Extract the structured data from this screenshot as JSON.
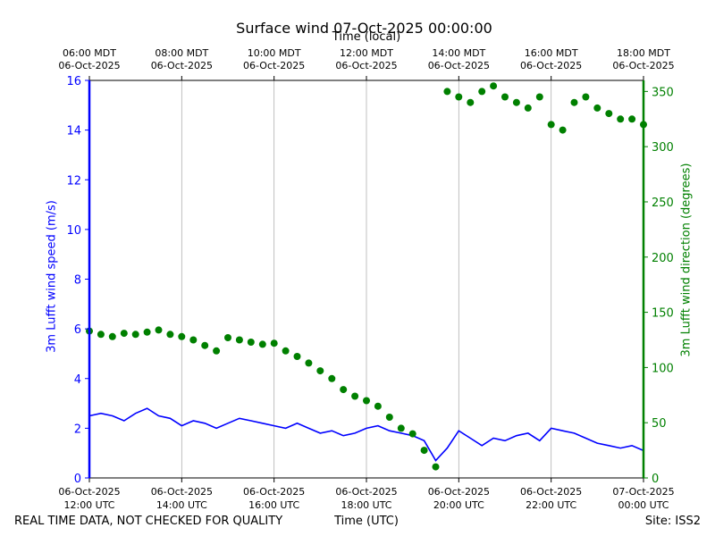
{
  "chart_data": {
    "type": "line+scatter",
    "title": "Surface wind 07-Oct-2025 00:00:00",
    "top_xlabel": "Time (local)",
    "xlabel": "Time (UTC)",
    "ylabel_left": "3m Lufft wind speed (m/s)",
    "ylabel_right": "3m Lufft wind direction (degrees)",
    "disclaimer": "REAL TIME DATA, NOT CHECKED FOR QUALITY",
    "site": "Site: ISS2",
    "xlim_hours": [
      12,
      24
    ],
    "ylim_left": [
      0,
      16
    ],
    "ylim_right": [
      0,
      360
    ],
    "grid": "vertical",
    "bottom_ticks": [
      {
        "hour": 12,
        "line1": "06-Oct-2025",
        "line2": "12:00 UTC"
      },
      {
        "hour": 14,
        "line1": "06-Oct-2025",
        "line2": "14:00 UTC"
      },
      {
        "hour": 16,
        "line1": "06-Oct-2025",
        "line2": "16:00 UTC"
      },
      {
        "hour": 18,
        "line1": "06-Oct-2025",
        "line2": "18:00 UTC"
      },
      {
        "hour": 20,
        "line1": "06-Oct-2025",
        "line2": "20:00 UTC"
      },
      {
        "hour": 22,
        "line1": "06-Oct-2025",
        "line2": "22:00 UTC"
      },
      {
        "hour": 24,
        "line1": "07-Oct-2025",
        "line2": "00:00 UTC"
      }
    ],
    "top_ticks": [
      {
        "hour": 12,
        "line1": "06:00 MDT",
        "line2": "06-Oct-2025"
      },
      {
        "hour": 14,
        "line1": "08:00 MDT",
        "line2": "06-Oct-2025"
      },
      {
        "hour": 16,
        "line1": "10:00 MDT",
        "line2": "06-Oct-2025"
      },
      {
        "hour": 18,
        "line1": "12:00 MDT",
        "line2": "06-Oct-2025"
      },
      {
        "hour": 20,
        "line1": "14:00 MDT",
        "line2": "06-Oct-2025"
      },
      {
        "hour": 22,
        "line1": "16:00 MDT",
        "line2": "06-Oct-2025"
      },
      {
        "hour": 24,
        "line1": "18:00 MDT",
        "line2": "06-Oct-2025"
      }
    ],
    "left_ticks": [
      0,
      2,
      4,
      6,
      8,
      10,
      12,
      14,
      16
    ],
    "right_ticks": [
      0,
      50,
      100,
      150,
      200,
      250,
      300,
      350
    ],
    "colors": {
      "speed": "#0000ff",
      "direction": "#008000",
      "grid": "#b0b0b0",
      "axis": "#000000"
    },
    "series": [
      {
        "name": "3m Lufft wind speed (m/s)",
        "axis": "left",
        "style": "line",
        "x": [
          12.0,
          12.25,
          12.5,
          12.75,
          13.0,
          13.25,
          13.5,
          13.75,
          14.0,
          14.25,
          14.5,
          14.75,
          15.0,
          15.25,
          15.5,
          15.75,
          16.0,
          16.25,
          16.5,
          16.75,
          17.0,
          17.25,
          17.5,
          17.75,
          18.0,
          18.25,
          18.5,
          18.75,
          19.0,
          19.25,
          19.5,
          19.75,
          20.0,
          20.25,
          20.5,
          20.75,
          21.0,
          21.25,
          21.5,
          21.75,
          22.0,
          22.25,
          22.5,
          22.75,
          23.0,
          23.25,
          23.5,
          23.75,
          24.0
        ],
        "y": [
          2.5,
          2.6,
          2.5,
          2.3,
          2.6,
          2.8,
          2.5,
          2.4,
          2.1,
          2.3,
          2.2,
          2.0,
          2.2,
          2.4,
          2.3,
          2.2,
          2.1,
          2.0,
          2.2,
          2.0,
          1.8,
          1.9,
          1.7,
          1.8,
          2.0,
          2.1,
          1.9,
          1.8,
          1.7,
          1.5,
          0.7,
          1.2,
          1.9,
          1.6,
          1.3,
          1.6,
          1.5,
          1.7,
          1.8,
          1.5,
          2.0,
          1.9,
          1.8,
          1.6,
          1.4,
          1.3,
          1.2,
          1.3,
          1.1
        ]
      },
      {
        "name": "3m Lufft wind direction (degrees)",
        "axis": "right",
        "style": "scatter",
        "x": [
          12.0,
          12.25,
          12.5,
          12.75,
          13.0,
          13.25,
          13.5,
          13.75,
          14.0,
          14.25,
          14.5,
          14.75,
          15.0,
          15.25,
          15.5,
          15.75,
          16.0,
          16.25,
          16.5,
          16.75,
          17.0,
          17.25,
          17.5,
          17.75,
          18.0,
          18.25,
          18.5,
          18.75,
          19.0,
          19.25,
          19.5,
          19.75,
          20.0,
          20.25,
          20.5,
          20.75,
          21.0,
          21.25,
          21.5,
          21.75,
          22.0,
          22.25,
          22.5,
          22.75,
          23.0,
          23.25,
          23.5,
          23.75,
          24.0
        ],
        "y": [
          133,
          130,
          128,
          131,
          130,
          132,
          134,
          130,
          128,
          125,
          120,
          115,
          127,
          125,
          123,
          121,
          122,
          115,
          110,
          104,
          97,
          90,
          80,
          74,
          70,
          65,
          55,
          45,
          40,
          25,
          10,
          350,
          345,
          340,
          350,
          355,
          345,
          340,
          335,
          345,
          320,
          315,
          340,
          345,
          335,
          330,
          325,
          325,
          320
        ]
      }
    ]
  }
}
